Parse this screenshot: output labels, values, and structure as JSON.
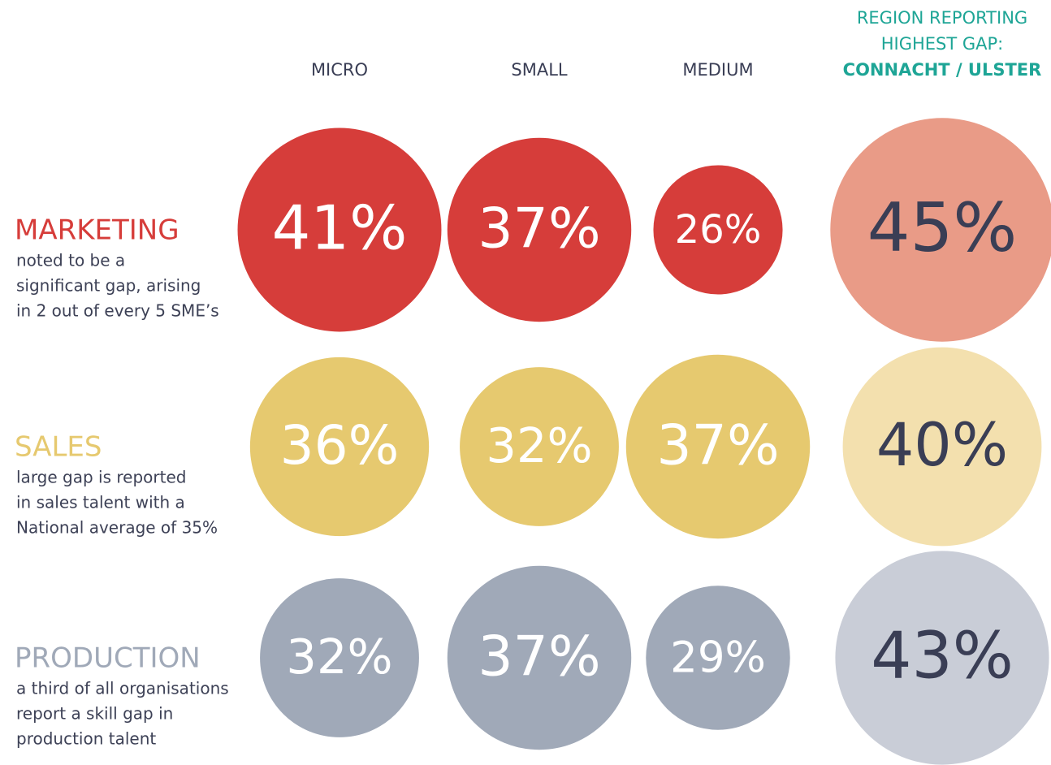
{
  "chart_data": {
    "type": "bubble",
    "categories": [
      "MICRO",
      "SMALL",
      "MEDIUM",
      "CONNACHT / ULSTER"
    ],
    "region_heading": [
      "REGION REPORTING",
      "HIGHEST GAP:"
    ],
    "heading_color": "#1ea596",
    "highlight_text_color": "#3a3e55",
    "series": [
      {
        "name": "MARKETING",
        "color": "#d63d3a",
        "highlight_color": "#e99b87",
        "description": [
          "noted to be a",
          "significant gap, arising",
          "in 2 out of every 5 SME’s"
        ],
        "values": [
          41,
          37,
          26,
          45
        ],
        "value_labels": [
          "41%",
          "37%",
          "26%",
          "45%"
        ]
      },
      {
        "name": "SALES",
        "color": "#e6c96f",
        "highlight_color": "#f3e0ae",
        "description": [
          "large gap is reported",
          "in sales talent with a",
          "National average of 35%"
        ],
        "values": [
          36,
          32,
          37,
          40
        ],
        "value_labels": [
          "36%",
          "32%",
          "37%",
          "40%"
        ]
      },
      {
        "name": "PRODUCTION",
        "color": "#a0a9b8",
        "highlight_color": "#c9cdd7",
        "description": [
          "a third of all organisations",
          "report a skill gap in",
          "production talent"
        ],
        "values": [
          32,
          37,
          29,
          43
        ],
        "value_labels": [
          "32%",
          "37%",
          "29%",
          "43%"
        ]
      }
    ]
  }
}
